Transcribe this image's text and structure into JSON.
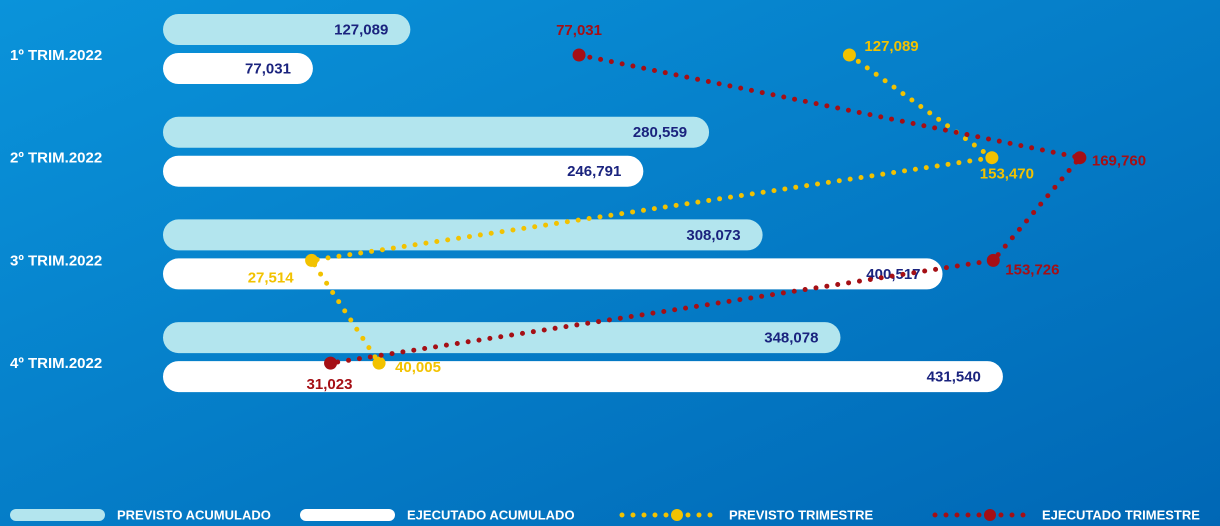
{
  "chart_data": {
    "type": "bar",
    "categories": [
      "1º TRIM.2022",
      "2º TRIM.2022",
      "3º TRIM.2022",
      "4º TRIM.2022"
    ],
    "xlim": [
      0,
      532800
    ],
    "x2lim": [
      0,
      192000
    ],
    "series": [
      {
        "name": "PREVISTO ACUMULADO",
        "type": "bar",
        "color": "#b3e5ee",
        "values": [
          127089,
          280559,
          308073,
          348078
        ],
        "value_labels": [
          "127,089",
          "280,559",
          "308,073",
          "348,078"
        ]
      },
      {
        "name": "EJECUTADO ACUMULADO",
        "type": "bar",
        "color": "#ffffff",
        "values": [
          77031,
          246791,
          400517,
          431540
        ],
        "value_labels": [
          "77,031",
          "246,791",
          "400,517",
          "431,540"
        ]
      },
      {
        "name": "PREVISTO TRIMESTRE",
        "type": "line",
        "axis": "x2",
        "color": "#f2c200",
        "values": [
          127089,
          153470,
          27514,
          40005
        ],
        "value_labels": [
          "127,089",
          "153,470",
          "27,514",
          "40,005"
        ]
      },
      {
        "name": "EJECUTADO TRIMESTRE",
        "type": "line",
        "axis": "x2",
        "color": "#a50f15",
        "values": [
          77031,
          169760,
          153726,
          31023
        ],
        "value_labels": [
          "77,031",
          "169,760",
          "153,726",
          "31,023"
        ]
      }
    ]
  }
}
